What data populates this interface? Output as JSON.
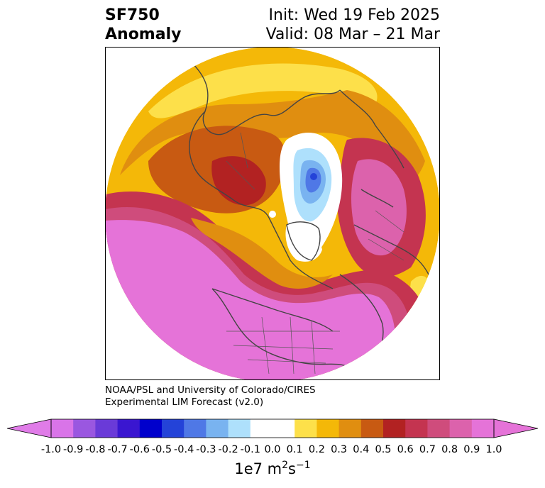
{
  "header": {
    "variable": "SF750",
    "field": "Anomaly",
    "init_text": "Init: Wed 19 Feb 2025",
    "valid_text": "Valid: 08 Mar – 21 Mar"
  },
  "credit": {
    "line1": "NOAA/PSL and University of Colorado/CIRES",
    "line2": "Experimental LIM Forecast (v2.0)"
  },
  "colorbar": {
    "tick_labels": [
      "-1.0",
      "-0.9",
      "-0.8",
      "-0.7",
      "-0.6",
      "-0.5",
      "-0.4",
      "-0.3",
      "-0.2",
      "-0.1",
      "0.0",
      "0.1",
      "0.2",
      "0.3",
      "0.4",
      "0.5",
      "0.6",
      "0.7",
      "0.8",
      "0.9",
      "1.0"
    ],
    "colors": [
      "#d974e8",
      "#9a57e0",
      "#6a3ad8",
      "#3a16d0",
      "#0000cc",
      "#2443d8",
      "#4f78e6",
      "#79b3f0",
      "#aee0fc",
      "#ffffff",
      "#ffffff",
      "#fde04a",
      "#f4b808",
      "#e08e10",
      "#c85a12",
      "#b22222",
      "#c43450",
      "#cf4c7c",
      "#dc62ac",
      "#e573d8"
    ],
    "under_color": "#e07ce8",
    "over_color": "#e573d8",
    "units_base": "1e7 m",
    "units_exp1": "2",
    "units_mid": "s",
    "units_exp2": "−1"
  }
}
